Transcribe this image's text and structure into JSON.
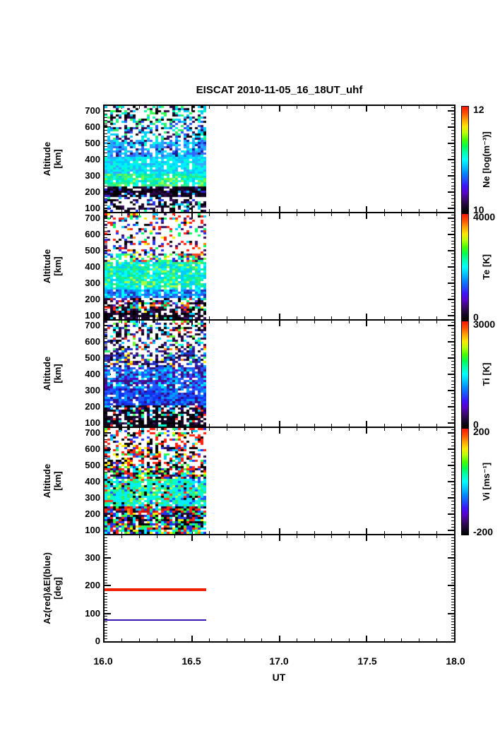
{
  "title": "EISCAT 2010-11-05_16_18UT_uhf",
  "xlabel": "UT",
  "x_ticks": [
    "16.0",
    "16.5",
    "17.0",
    "17.5",
    "18.0"
  ],
  "axis_color": "#000000",
  "background": "#ffffff",
  "noise_seed": 20101105,
  "palette": [
    "#000000",
    "#1c0630",
    "#3a0a6e",
    "#5a00c8",
    "#3c14ff",
    "#1e50ff",
    "#008cff",
    "#00c8ff",
    "#00ffff",
    "#00ffb4",
    "#00ff50",
    "#46ff00",
    "#b4ff00",
    "#ffe600",
    "#ffa000",
    "#ff5000",
    "#ff1400"
  ],
  "chart_data": [
    {
      "type": "heatmap",
      "name": "Ne",
      "ylabel_lines": [
        "Altitude",
        "[km]"
      ],
      "xlim": [
        16.0,
        18.0
      ],
      "ylim": [
        80,
        730
      ],
      "yticks": [
        700,
        600,
        500,
        400,
        300,
        200,
        100
      ],
      "minor_step": 20,
      "major_step": 100,
      "data_x_extent": [
        16.0,
        16.58
      ],
      "colorbar": {
        "label": "Ne [log(m⁻³)]",
        "max": "12",
        "min": "10"
      },
      "bands": [
        {
          "alt": [
            80,
            170
          ],
          "density": 0.5,
          "colors": [
            [
              "#000000",
              0.4
            ],
            [
              "#1c0630",
              0.25
            ],
            [
              "#3a1060",
              0.12
            ],
            [
              "#00ccff",
              0.08
            ],
            [
              "#2233ee",
              0.08
            ],
            [
              "#00ff99",
              0.07
            ]
          ]
        },
        {
          "alt": [
            170,
            230
          ],
          "density": 0.93,
          "colors": [
            [
              "#120320",
              0.38
            ],
            [
              "#000000",
              0.27
            ],
            [
              "#2a0845",
              0.18
            ],
            [
              "#3322cc",
              0.09
            ],
            [
              "#00bbff",
              0.08
            ]
          ]
        },
        {
          "alt": [
            230,
            320
          ],
          "density": 0.97,
          "colors": [
            [
              "#33ee88",
              0.22
            ],
            [
              "#00eeaa",
              0.28
            ],
            [
              "#66ff44",
              0.14
            ],
            [
              "#00ffee",
              0.22
            ],
            [
              "#99ff55",
              0.07
            ],
            [
              "#00ccff",
              0.07
            ]
          ]
        },
        {
          "alt": [
            320,
            420
          ],
          "density": 0.95,
          "colors": [
            [
              "#00eeff",
              0.32
            ],
            [
              "#00ccff",
              0.28
            ],
            [
              "#33aaff",
              0.2
            ],
            [
              "#00ffcc",
              0.2
            ]
          ]
        },
        {
          "alt": [
            420,
            520
          ],
          "density": 0.8,
          "colors": [
            [
              "#22aaff",
              0.28
            ],
            [
              "#00ddff",
              0.22
            ],
            [
              "#3366ff",
              0.2
            ],
            [
              "#00ffdd",
              0.12
            ],
            [
              "#1122aa",
              0.1
            ],
            [
              "#330a55",
              0.08
            ]
          ]
        },
        {
          "alt": [
            520,
            640
          ],
          "density": 0.55,
          "colors": [
            [
              "#00ccff",
              0.24
            ],
            [
              "#2255ff",
              0.2
            ],
            [
              "#00ffcc",
              0.14
            ],
            [
              "#33ee66",
              0.14
            ],
            [
              "#0a0a0a",
              0.14
            ],
            [
              "#330a55",
              0.14
            ]
          ]
        },
        {
          "alt": [
            640,
            730
          ],
          "density": 0.42,
          "colors": [
            [
              "#00ffaa",
              0.2
            ],
            [
              "#33ff55",
              0.2
            ],
            [
              "#00ccff",
              0.2
            ],
            [
              "#000000",
              0.2
            ],
            [
              "#2a0a45",
              0.2
            ]
          ]
        }
      ]
    },
    {
      "type": "heatmap",
      "name": "Te",
      "ylabel_lines": [
        "Altitude",
        "[km]"
      ],
      "xlim": [
        16.0,
        18.0
      ],
      "ylim": [
        80,
        730
      ],
      "yticks": [
        700,
        600,
        500,
        400,
        300,
        200,
        100
      ],
      "minor_step": 20,
      "major_step": 100,
      "data_x_extent": [
        16.0,
        16.58
      ],
      "colorbar": {
        "label": "Te [K]",
        "max": "4000",
        "min": "0"
      },
      "bands": [
        {
          "alt": [
            80,
            145
          ],
          "density": 0.78,
          "colors": [
            [
              "#170427",
              0.4
            ],
            [
              "#000000",
              0.3
            ],
            [
              "#3a1060",
              0.12
            ],
            [
              "#ff3322",
              0.05
            ],
            [
              "#00ee88",
              0.05
            ],
            [
              "#ffee00",
              0.03
            ],
            [
              "#00ccff",
              0.05
            ]
          ]
        },
        {
          "alt": [
            145,
            205
          ],
          "density": 0.68,
          "colors": [
            [
              "#2a0a3c",
              0.26
            ],
            [
              "#000000",
              0.2
            ],
            [
              "#ff2211",
              0.12
            ],
            [
              "#00ee77",
              0.1
            ],
            [
              "#ffee00",
              0.05
            ],
            [
              "#00ccff",
              0.1
            ],
            [
              "#4422cc",
              0.12
            ],
            [
              "#ff8800",
              0.05
            ]
          ]
        },
        {
          "alt": [
            205,
            260
          ],
          "density": 0.95,
          "colors": [
            [
              "#2266ff",
              0.3
            ],
            [
              "#00aaff",
              0.3
            ],
            [
              "#00ffff",
              0.2
            ],
            [
              "#2233bb",
              0.2
            ]
          ]
        },
        {
          "alt": [
            260,
            430
          ],
          "density": 0.95,
          "colors": [
            [
              "#00eeaa",
              0.24
            ],
            [
              "#00ffff",
              0.26
            ],
            [
              "#33ee77",
              0.2
            ],
            [
              "#00ccff",
              0.2
            ],
            [
              "#aaff44",
              0.1
            ]
          ]
        },
        {
          "alt": [
            430,
            485
          ],
          "density": 0.65,
          "colors": [
            [
              "#66ff33",
              0.18
            ],
            [
              "#00ffaa",
              0.18
            ],
            [
              "#ffee22",
              0.1
            ],
            [
              "#00ccff",
              0.14
            ],
            [
              "#ff4422",
              0.12
            ],
            [
              "#3a1060",
              0.16
            ],
            [
              "#2233ee",
              0.12
            ]
          ]
        },
        {
          "alt": [
            485,
            730
          ],
          "density": 0.3,
          "colors": [
            [
              "#ff2211",
              0.24
            ],
            [
              "#2233ee",
              0.15
            ],
            [
              "#00ff66",
              0.12
            ],
            [
              "#00ccff",
              0.12
            ],
            [
              "#3a1060",
              0.16
            ],
            [
              "#000000",
              0.11
            ],
            [
              "#ff8800",
              0.05
            ],
            [
              "#ffee00",
              0.05
            ]
          ]
        }
      ]
    },
    {
      "type": "heatmap",
      "name": "Ti",
      "ylabel_lines": [
        "Altitude",
        "[km]"
      ],
      "xlim": [
        16.0,
        18.0
      ],
      "ylim": [
        80,
        730
      ],
      "yticks": [
        700,
        600,
        500,
        400,
        300,
        200,
        100
      ],
      "minor_step": 20,
      "major_step": 100,
      "data_x_extent": [
        16.0,
        16.58
      ],
      "colorbar": {
        "label": "Ti [K]",
        "max": "3000",
        "min": "0"
      },
      "bands": [
        {
          "alt": [
            80,
            145
          ],
          "density": 0.8,
          "colors": [
            [
              "#120320",
              0.45
            ],
            [
              "#000000",
              0.34
            ],
            [
              "#3a1060",
              0.1
            ],
            [
              "#00ffcc",
              0.06
            ],
            [
              "#ff3322",
              0.05
            ]
          ]
        },
        {
          "alt": [
            145,
            205
          ],
          "density": 0.85,
          "colors": [
            [
              "#170427",
              0.4
            ],
            [
              "#000000",
              0.28
            ],
            [
              "#3300aa",
              0.1
            ],
            [
              "#00ccff",
              0.1
            ],
            [
              "#33ff66",
              0.06
            ],
            [
              "#ff3322",
              0.06
            ]
          ]
        },
        {
          "alt": [
            205,
            320
          ],
          "density": 0.95,
          "colors": [
            [
              "#1133ee",
              0.34
            ],
            [
              "#2255ff",
              0.28
            ],
            [
              "#0099ff",
              0.2
            ],
            [
              "#330a88",
              0.18
            ]
          ]
        },
        {
          "alt": [
            320,
            440
          ],
          "density": 0.9,
          "colors": [
            [
              "#2255ff",
              0.3
            ],
            [
              "#00aaff",
              0.24
            ],
            [
              "#00eeff",
              0.14
            ],
            [
              "#3a1080",
              0.2
            ],
            [
              "#5500bb",
              0.12
            ]
          ]
        },
        {
          "alt": [
            440,
            560
          ],
          "density": 0.68,
          "colors": [
            [
              "#3a1080",
              0.28
            ],
            [
              "#2233cc",
              0.24
            ],
            [
              "#00aaff",
              0.1
            ],
            [
              "#120320",
              0.2
            ],
            [
              "#33ee66",
              0.08
            ],
            [
              "#ff8800",
              0.05
            ],
            [
              "#ffee00",
              0.05
            ]
          ]
        },
        {
          "alt": [
            560,
            730
          ],
          "density": 0.45,
          "colors": [
            [
              "#2a0a45",
              0.3
            ],
            [
              "#000000",
              0.24
            ],
            [
              "#2233cc",
              0.14
            ],
            [
              "#00ccff",
              0.1
            ],
            [
              "#66ff33",
              0.08
            ],
            [
              "#ff3322",
              0.08
            ],
            [
              "#00ffee",
              0.06
            ]
          ]
        }
      ]
    },
    {
      "type": "heatmap",
      "name": "Vi",
      "ylabel_lines": [
        "Altitude",
        "[km]"
      ],
      "xlim": [
        16.0,
        18.0
      ],
      "ylim": [
        80,
        730
      ],
      "yticks": [
        700,
        600,
        500,
        400,
        300,
        200,
        100
      ],
      "minor_step": 20,
      "major_step": 100,
      "data_x_extent": [
        16.0,
        16.58
      ],
      "colorbar": {
        "label": "Vi [ms⁻¹]",
        "max": "200",
        "min": "-200"
      },
      "bands": [
        {
          "alt": [
            80,
            130
          ],
          "density": 0.92,
          "colors": [
            [
              "#ff2211",
              0.2
            ],
            [
              "#000000",
              0.15
            ],
            [
              "#33ff44",
              0.15
            ],
            [
              "#00eeff",
              0.15
            ],
            [
              "#ffee00",
              0.1
            ],
            [
              "#2233ee",
              0.1
            ],
            [
              "#ff8800",
              0.05
            ],
            [
              "#2a0a45",
              0.1
            ]
          ]
        },
        {
          "alt": [
            130,
            205
          ],
          "density": 0.9,
          "colors": [
            [
              "#ff2211",
              0.2
            ],
            [
              "#000000",
              0.2
            ],
            [
              "#00eeff",
              0.15
            ],
            [
              "#2233ee",
              0.15
            ],
            [
              "#2a0a45",
              0.14
            ],
            [
              "#33ff44",
              0.1
            ],
            [
              "#ffee00",
              0.06
            ]
          ]
        },
        {
          "alt": [
            205,
            250
          ],
          "density": 0.95,
          "colors": [
            [
              "#ff2211",
              0.26
            ],
            [
              "#cc1100",
              0.1
            ],
            [
              "#000000",
              0.15
            ],
            [
              "#2a0a45",
              0.14
            ],
            [
              "#2233ee",
              0.1
            ],
            [
              "#00ccff",
              0.1
            ],
            [
              "#33ff44",
              0.1
            ],
            [
              "#ff8800",
              0.05
            ]
          ]
        },
        {
          "alt": [
            250,
            420
          ],
          "density": 0.95,
          "colors": [
            [
              "#00eeff",
              0.3
            ],
            [
              "#00ffcc",
              0.18
            ],
            [
              "#33ee66",
              0.2
            ],
            [
              "#2255ff",
              0.1
            ],
            [
              "#aaff44",
              0.08
            ],
            [
              "#ff3322",
              0.07
            ],
            [
              "#000000",
              0.07
            ]
          ]
        },
        {
          "alt": [
            420,
            495
          ],
          "density": 0.8,
          "colors": [
            [
              "#ff2211",
              0.2
            ],
            [
              "#000000",
              0.18
            ],
            [
              "#00eeff",
              0.15
            ],
            [
              "#2233ee",
              0.12
            ],
            [
              "#33ff44",
              0.12
            ],
            [
              "#2a0a45",
              0.13
            ],
            [
              "#ffee00",
              0.1
            ]
          ]
        },
        {
          "alt": [
            495,
            610
          ],
          "density": 0.55,
          "colors": [
            [
              "#ff2211",
              0.3
            ],
            [
              "#000000",
              0.25
            ],
            [
              "#2a0a45",
              0.12
            ],
            [
              "#00ccff",
              0.1
            ],
            [
              "#33ff44",
              0.08
            ],
            [
              "#2233ee",
              0.08
            ],
            [
              "#ffee00",
              0.07
            ]
          ]
        },
        {
          "alt": [
            610,
            730
          ],
          "density": 0.45,
          "colors": [
            [
              "#ff2211",
              0.35
            ],
            [
              "#000000",
              0.3
            ],
            [
              "#33ff44",
              0.1
            ],
            [
              "#00ccff",
              0.1
            ],
            [
              "#ffee00",
              0.05
            ],
            [
              "#2233ee",
              0.1
            ]
          ]
        }
      ]
    },
    {
      "type": "line",
      "name": "AzEl",
      "ylabel_lines": [
        "Az(red)&El(blue)",
        "[deg]"
      ],
      "xlim": [
        16.0,
        18.0
      ],
      "ylim": [
        0,
        380
      ],
      "yticks": [
        300,
        200,
        100,
        0
      ],
      "minor_step": 10,
      "major_step": 100,
      "data_x_extent": [
        16.0,
        16.58
      ],
      "series": [
        {
          "name": "Az",
          "color": "#ee2200",
          "value": 186,
          "line_width": 4
        },
        {
          "name": "El",
          "color": "#3a18b0",
          "value": 75,
          "line_width": 2
        }
      ]
    }
  ]
}
